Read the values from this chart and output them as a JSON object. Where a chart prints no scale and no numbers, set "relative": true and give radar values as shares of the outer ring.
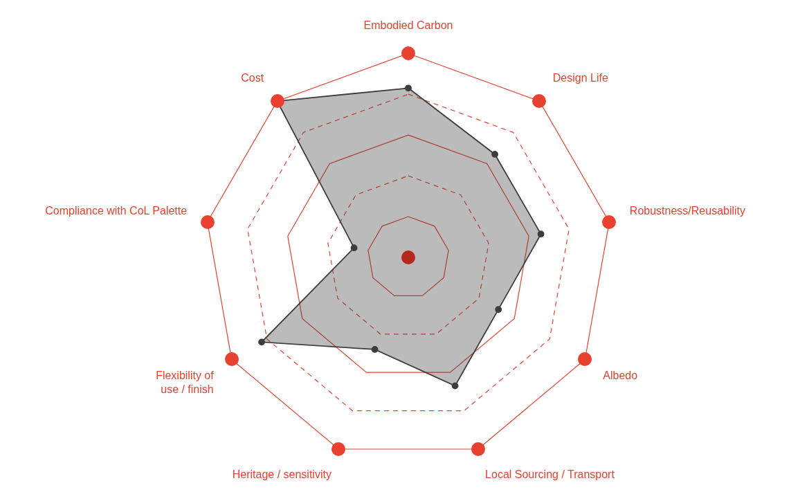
{
  "chart_data": {
    "type": "radar",
    "relative": true,
    "grid": true,
    "marker": "circle",
    "categories": [
      "Embodied Carbon",
      "Design Life",
      "Robustness/Reusability",
      "Albedo",
      "Local Sourcing / Transport",
      "Heritage / sensitivity",
      "Flexibility of\nuse / finish",
      "Compliance with CoL Palette",
      "Cost"
    ],
    "series": [
      {
        "color": "#3d3d3d",
        "values": [
          0.83,
          0.66,
          0.66,
          0.51,
          0.67,
          0.48,
          0.83,
          0.27,
          1
        ]
      }
    ]
  }
}
